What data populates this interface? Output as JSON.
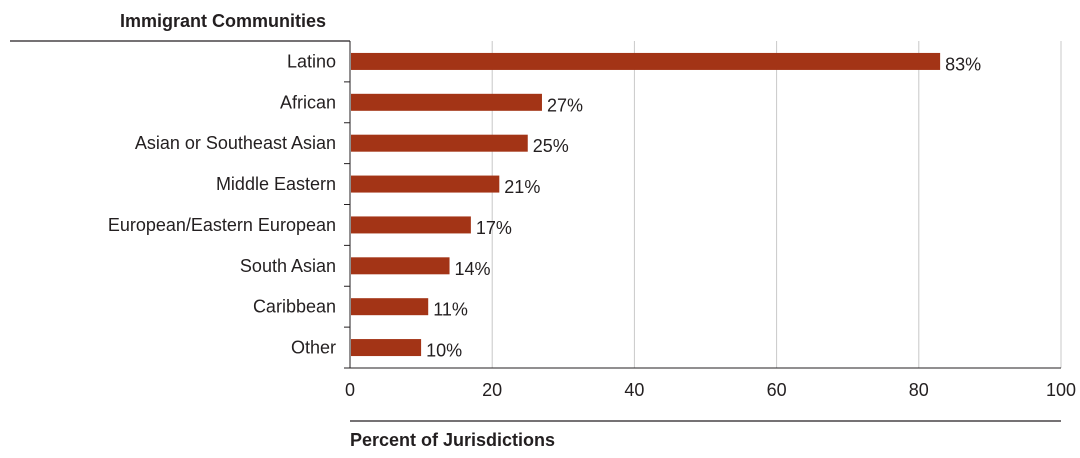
{
  "chart_data": {
    "type": "bar",
    "orientation": "horizontal",
    "title": "Immigrant Communities",
    "xlabel": "Percent of Jurisdictions",
    "ylabel": "",
    "categories": [
      "Latino",
      "African",
      "Asian or Southeast Asian",
      "Middle Eastern",
      "European/Eastern European",
      "South Asian",
      "Caribbean",
      "Other"
    ],
    "values": [
      83,
      27,
      25,
      21,
      17,
      14,
      11,
      10
    ],
    "data_labels": [
      "83%",
      "27%",
      "25%",
      "21%",
      "17%",
      "14%",
      "11%",
      "10%"
    ],
    "xlim": [
      0,
      100
    ],
    "x_ticks": [
      0,
      20,
      40,
      60,
      80,
      100
    ],
    "x_tick_labels": [
      "0",
      "20",
      "40",
      "60",
      "80",
      "100"
    ],
    "grid": true,
    "legend": "none",
    "colors": {
      "bar": "#a33416",
      "grid": "#c8c8c8",
      "axis": "#231f20",
      "text": "#231f20"
    }
  }
}
